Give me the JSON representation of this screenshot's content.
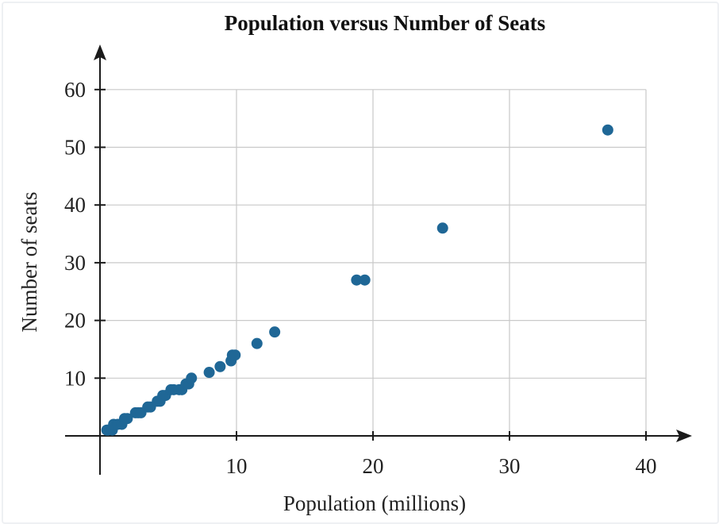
{
  "chart_data": {
    "type": "scatter",
    "title": "Population versus Number of Seats",
    "xlabel": "Population (millions)",
    "ylabel": "Number of seats",
    "xlim": [
      0,
      40
    ],
    "ylim": [
      0,
      60
    ],
    "xticks": [
      10,
      20,
      30,
      40
    ],
    "yticks": [
      10,
      20,
      30,
      40,
      50,
      60
    ],
    "grid": true,
    "color": "#1f6796",
    "points": [
      {
        "x": 0.5,
        "y": 1
      },
      {
        "x": 0.6,
        "y": 1
      },
      {
        "x": 0.9,
        "y": 1
      },
      {
        "x": 1.0,
        "y": 2
      },
      {
        "x": 1.3,
        "y": 2
      },
      {
        "x": 1.6,
        "y": 2
      },
      {
        "x": 1.8,
        "y": 3
      },
      {
        "x": 2.0,
        "y": 3
      },
      {
        "x": 2.6,
        "y": 4
      },
      {
        "x": 2.8,
        "y": 4
      },
      {
        "x": 3.0,
        "y": 4
      },
      {
        "x": 3.5,
        "y": 5
      },
      {
        "x": 3.7,
        "y": 5
      },
      {
        "x": 4.2,
        "y": 6
      },
      {
        "x": 4.4,
        "y": 6
      },
      {
        "x": 4.6,
        "y": 7
      },
      {
        "x": 4.8,
        "y": 7
      },
      {
        "x": 5.2,
        "y": 8
      },
      {
        "x": 5.4,
        "y": 8
      },
      {
        "x": 5.8,
        "y": 8
      },
      {
        "x": 6.0,
        "y": 8
      },
      {
        "x": 6.3,
        "y": 9
      },
      {
        "x": 6.5,
        "y": 9
      },
      {
        "x": 6.7,
        "y": 10
      },
      {
        "x": 8.0,
        "y": 11
      },
      {
        "x": 8.8,
        "y": 12
      },
      {
        "x": 9.6,
        "y": 13
      },
      {
        "x": 9.7,
        "y": 14
      },
      {
        "x": 9.9,
        "y": 14
      },
      {
        "x": 11.5,
        "y": 16
      },
      {
        "x": 12.8,
        "y": 18
      },
      {
        "x": 18.8,
        "y": 27
      },
      {
        "x": 19.4,
        "y": 27
      },
      {
        "x": 25.1,
        "y": 36
      },
      {
        "x": 37.2,
        "y": 53
      }
    ]
  }
}
